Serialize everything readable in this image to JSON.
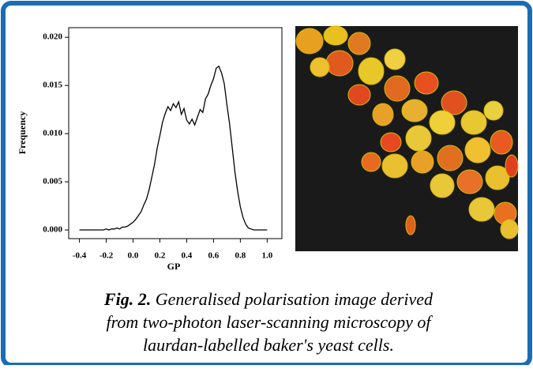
{
  "chart_data": {
    "type": "line",
    "xlabel": "GP",
    "ylabel": "Frequency",
    "xlim": [
      -0.48,
      1.11
    ],
    "ylim": [
      -0.0009,
      0.021
    ],
    "xticks": [
      -0.4,
      -0.2,
      {
        "value": 0,
        "label": "0.0"
      },
      0.2,
      0.4,
      0.6,
      0.8,
      {
        "value": 1,
        "label": "1.0"
      }
    ],
    "yticks": [
      {
        "value": 0,
        "label": "0.000"
      },
      {
        "value": 0.005,
        "label": "0.005"
      },
      {
        "value": 0.01,
        "label": "0.010"
      },
      {
        "value": 0.015,
        "label": "0.015"
      },
      {
        "value": 0.02,
        "label": "0.020"
      }
    ],
    "x": [
      -0.4,
      -0.38,
      -0.36,
      -0.34,
      -0.32,
      -0.3,
      -0.28,
      -0.26,
      -0.24,
      -0.22,
      -0.2,
      -0.18,
      -0.16,
      -0.14,
      -0.12,
      -0.1,
      -0.08,
      -0.06,
      -0.04,
      -0.02,
      0,
      0.02,
      0.04,
      0.06,
      0.08,
      0.1,
      0.12,
      0.14,
      0.16,
      0.18,
      0.2,
      0.22,
      0.24,
      0.26,
      0.28,
      0.3,
      0.32,
      0.34,
      0.36,
      0.38,
      0.4,
      0.42,
      0.44,
      0.46,
      0.48,
      0.5,
      0.52,
      0.54,
      0.56,
      0.58,
      0.6,
      0.62,
      0.64,
      0.66,
      0.68,
      0.7,
      0.72,
      0.74,
      0.76,
      0.78,
      0.8,
      0.82,
      0.84,
      0.86,
      0.88,
      0.9,
      0.92,
      0.94,
      0.96,
      0.98,
      1
    ],
    "series": [
      {
        "color": "#000000",
        "values": [
          0,
          0,
          0,
          0,
          0,
          0,
          0,
          0,
          0,
          0,
          0.0001,
          0,
          0.0001,
          0.0001,
          0.0002,
          0.0001,
          0.0003,
          0.0003,
          0.0004,
          0.0006,
          0.0008,
          0.0011,
          0.0015,
          0.0019,
          0.0026,
          0.0032,
          0.0042,
          0.0055,
          0.0068,
          0.0085,
          0.0098,
          0.0112,
          0.0121,
          0.0128,
          0.0124,
          0.0131,
          0.0127,
          0.0133,
          0.012,
          0.0126,
          0.0114,
          0.011,
          0.0115,
          0.0109,
          0.0117,
          0.0125,
          0.0122,
          0.0136,
          0.0141,
          0.015,
          0.0157,
          0.0168,
          0.017,
          0.0163,
          0.0152,
          0.013,
          0.011,
          0.0085,
          0.006,
          0.004,
          0.0024,
          0.0013,
          0.0006,
          0.0002,
          0.0001,
          0,
          0,
          0,
          0,
          0,
          0
        ]
      }
    ]
  },
  "caption": {
    "label": "Fig. 2.",
    "lines": [
      "Generalised polarisation image derived",
      "from two-photon laser-scanning microscopy of",
      "laurdan-labelled baker's yeast cells."
    ]
  }
}
